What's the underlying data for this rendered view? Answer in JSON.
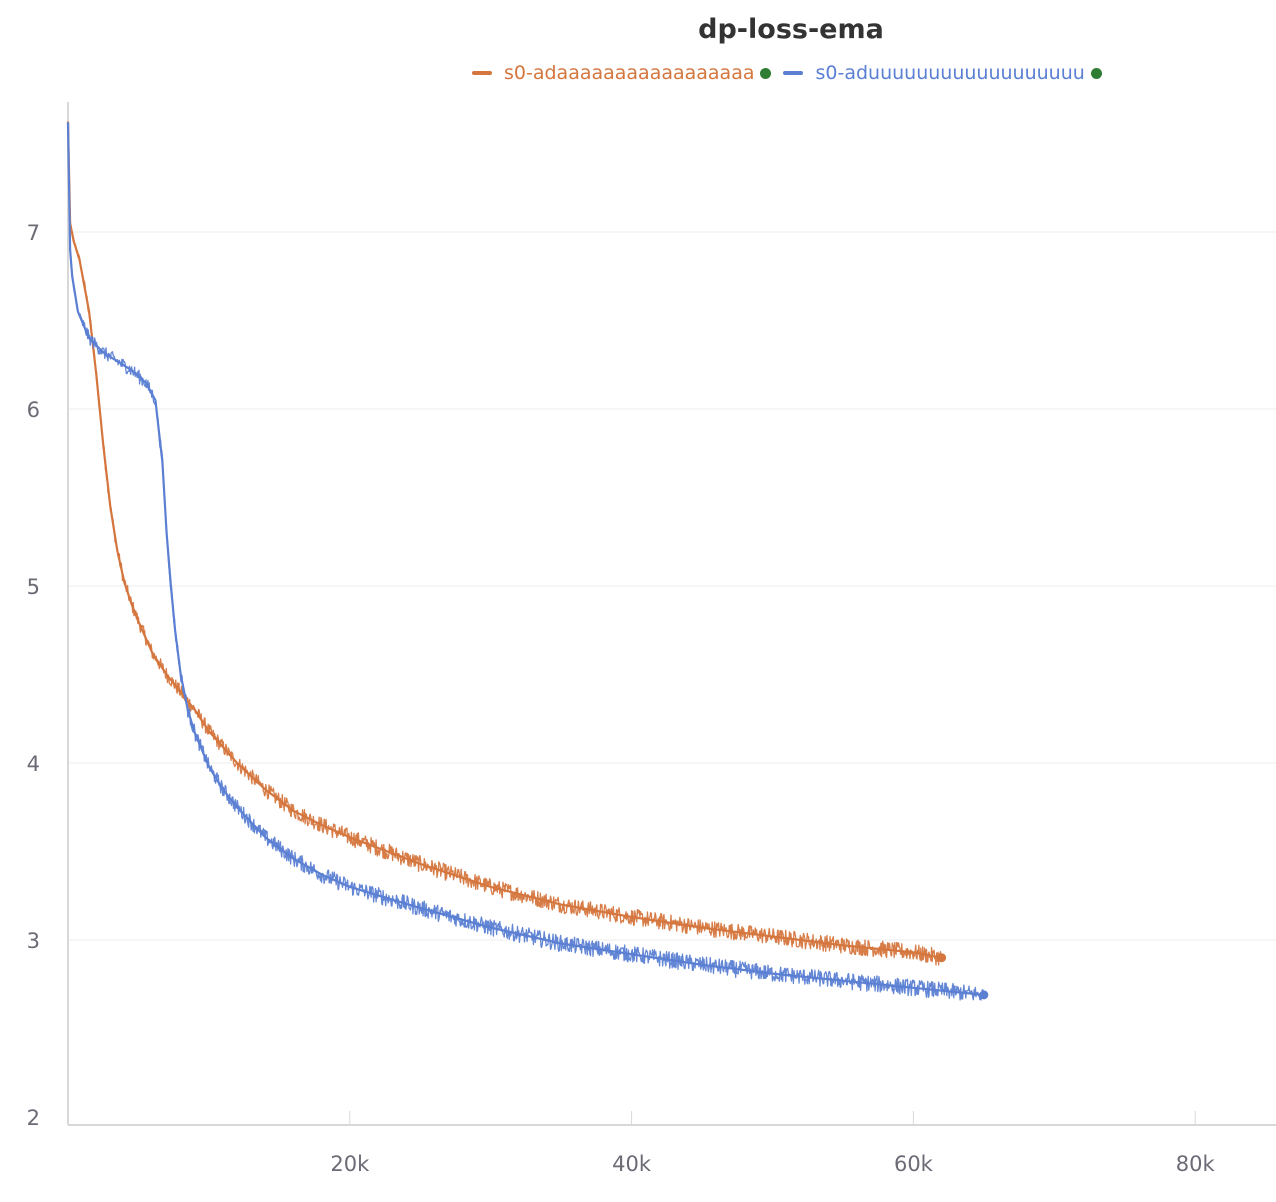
{
  "chart_data": {
    "type": "line",
    "title": "dp-loss-ema",
    "xlabel": "",
    "ylabel": "",
    "xlim": [
      0,
      85500
    ],
    "ylim": [
      1.95,
      7.75
    ],
    "xticks": [
      20000,
      40000,
      60000,
      80000
    ],
    "xtick_labels": [
      "20k",
      "40k",
      "60k",
      "80k"
    ],
    "yticks": [
      2,
      3,
      4,
      5,
      6,
      7
    ],
    "ytick_labels": [
      "2",
      "3",
      "4",
      "5",
      "6",
      "7"
    ],
    "grid": true,
    "legend_position": "top",
    "series": [
      {
        "name": "s0-adaaaaaaaaaaaaaaaaa",
        "color": "#d5763e",
        "status_color": "#2e7d32",
        "x": [
          0,
          150,
          400,
          800,
          1500,
          2000,
          2500,
          3000,
          3500,
          4000,
          4500,
          5000,
          6000,
          7000,
          8000,
          9000,
          10000,
          12000,
          14000,
          16000,
          18000,
          20000,
          25000,
          30000,
          35000,
          40000,
          45000,
          50000,
          55000,
          60000,
          62000
        ],
        "values": [
          7.62,
          7.05,
          6.95,
          6.85,
          6.55,
          6.2,
          5.8,
          5.45,
          5.2,
          5.02,
          4.9,
          4.8,
          4.62,
          4.5,
          4.4,
          4.3,
          4.18,
          4.0,
          3.85,
          3.73,
          3.65,
          3.58,
          3.43,
          3.3,
          3.2,
          3.13,
          3.07,
          3.02,
          2.97,
          2.93,
          2.9
        ]
      },
      {
        "name": "s0-aduuuuuuuuuuuuuuuuuu",
        "color": "#5b7fd3",
        "status_color": "#2e7d32",
        "x": [
          0,
          150,
          300,
          700,
          1500,
          2500,
          3500,
          4500,
          5500,
          6200,
          6700,
          7000,
          7300,
          7600,
          8000,
          8500,
          9000,
          10000,
          11000,
          12000,
          14000,
          16000,
          18000,
          20000,
          25000,
          30000,
          35000,
          40000,
          45000,
          50000,
          55000,
          60000,
          65000
        ],
        "values": [
          7.62,
          6.9,
          6.75,
          6.55,
          6.4,
          6.32,
          6.27,
          6.22,
          6.15,
          6.05,
          5.7,
          5.3,
          5.0,
          4.75,
          4.5,
          4.3,
          4.17,
          3.98,
          3.85,
          3.75,
          3.58,
          3.46,
          3.37,
          3.3,
          3.18,
          3.07,
          2.98,
          2.92,
          2.86,
          2.81,
          2.77,
          2.73,
          2.69
        ]
      }
    ]
  }
}
